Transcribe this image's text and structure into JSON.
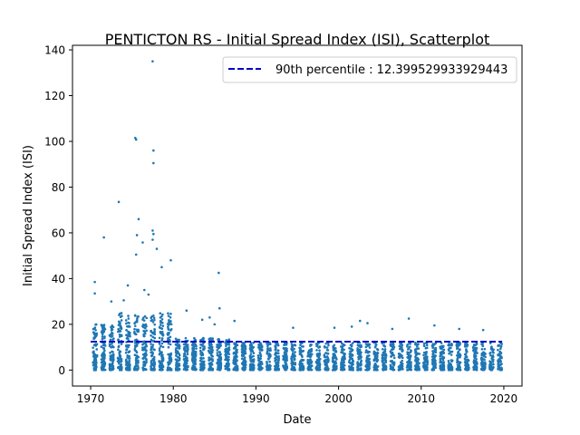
{
  "chart_data": {
    "type": "scatter",
    "title": "PENTICTON RS - Initial Spread Index (ISI), Scatterplot",
    "xlabel": "Date",
    "ylabel": "Initial Spread Index (ISI)",
    "xlim": [
      1967.8,
      2022.2
    ],
    "ylim": [
      -7.0,
      142.0
    ],
    "x_ticks": [
      1970,
      1980,
      1990,
      2000,
      2010,
      2020
    ],
    "y_ticks": [
      0,
      20,
      40,
      60,
      80,
      100,
      120,
      140
    ],
    "grid": false,
    "legend_position": "top-right",
    "point_color": "#1f77b4",
    "reference_line": {
      "label": "90th percentile : 12.399529933929443",
      "value": 12.399529933929443,
      "x_start": 1970.0,
      "x_end": 2019.8,
      "color": "#0000cc",
      "style": "dashed"
    },
    "season": {
      "first_year": 1970,
      "last_year": 2019,
      "start_fraction": 0.28,
      "end_fraction": 0.78
    },
    "series": [
      {
        "x": [
          1970.5,
          1970.5,
          1971.6,
          1973.4,
          1975.4,
          1975.5,
          1975.8,
          1975.6,
          1975.5,
          1976.3,
          1977.5,
          1977.6,
          1977.6,
          1977.5,
          1977.6,
          1977.5,
          1978.0,
          1978.6,
          1979.7,
          1985.5,
          1985.6,
          1972.5,
          1974.0,
          1974.5,
          1976.5,
          1977.0,
          1981.6,
          1983.5,
          1984.4,
          1985.0,
          1987.4,
          1994.5,
          1999.5,
          2001.6,
          2002.6,
          2003.5,
          2008.5,
          2011.6,
          2006.5,
          2014.6,
          2017.5
        ],
        "y": [
          38.5,
          33.5,
          58.0,
          73.5,
          101.5,
          100.8,
          66.0,
          59.0,
          50.5,
          55.8,
          135.0,
          96.0,
          90.5,
          61.0,
          59.5,
          57.0,
          53.0,
          45.0,
          48.0,
          42.5,
          27.0,
          30.0,
          30.5,
          37.0,
          35.0,
          33.0,
          26.0,
          22.0,
          23.0,
          20.0,
          21.5,
          18.5,
          18.5,
          19.0,
          21.5,
          20.5,
          22.5,
          19.5,
          18.0,
          18.0,
          17.5
        ]
      }
    ]
  }
}
